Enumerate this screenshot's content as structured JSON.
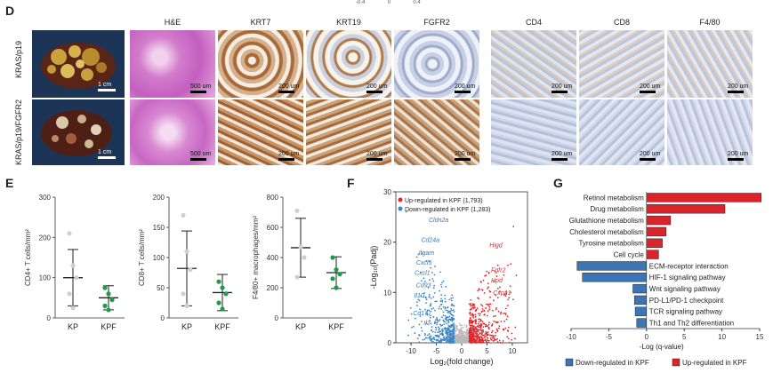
{
  "panel_d": {
    "label": "D",
    "colorbar_ticks": [
      "-0.4",
      "0",
      "0.4"
    ],
    "rows": [
      "KRAS/p19",
      "KRAS/p19/FGFR2"
    ],
    "columns": [
      "H&E",
      "KRT7",
      "KRT19",
      "FGFR2",
      "CD4",
      "CD8",
      "F4/80"
    ],
    "photo_scale": "1 cm",
    "he_scale": "500 um",
    "ihc_scale": "200 um"
  },
  "panel_e": {
    "label": "E",
    "plots": [
      {
        "ylabel": "CD4+ T cells/mm²",
        "yticks": [
          "0",
          "100",
          "200",
          "300"
        ]
      },
      {
        "ylabel": "CD8+ T cells/mm²",
        "yticks": [
          "0",
          "50",
          "100",
          "150",
          "200"
        ]
      },
      {
        "ylabel": "F4/80+ macrophages/mm²",
        "yticks": [
          "0",
          "200",
          "400",
          "600",
          "800"
        ]
      }
    ],
    "groups": [
      "KP",
      "KPF"
    ]
  },
  "panel_f": {
    "label": "F",
    "legend_up": "Up-regulated in KPF (1,793)",
    "legend_down": "Down-regulated in KPF (1,283)",
    "ylabel": "-Log₁₀(Padj)",
    "xlabel": "Log₂(fold change)",
    "xticks": [
      "-10",
      "-5",
      "0",
      "5",
      "10"
    ],
    "yticks": [
      "0",
      "10",
      "20",
      "30"
    ],
    "genes_down": [
      "Cldn2a",
      "Cd24a",
      "Itgam",
      "Cxcl5",
      "Cxcl1",
      "Cd93",
      "Il10",
      "Cd177",
      "Il2"
    ],
    "genes_up": [
      "Higd",
      "Fgfr2",
      "Hpd",
      "Cxpa1"
    ]
  },
  "panel_g": {
    "label": "G",
    "xlabel": "-Log (q-value)",
    "xticks": [
      "-10",
      "-5",
      "0",
      "5",
      "10",
      "15"
    ],
    "legend_down": "Down-regulated in KPF",
    "legend_up": "Up-regulated in KPF",
    "colors": {
      "up": "#d9242b",
      "down": "#3c74b4"
    }
  },
  "chart_data": [
    {
      "type": "scatter",
      "title": "",
      "ylabel": "CD4+ T cells/mm²",
      "categories": [
        "KP",
        "KPF"
      ],
      "ylim": [
        0,
        300
      ],
      "series": [
        {
          "name": "KP",
          "values": [
            210,
            130,
            100,
            60,
            25
          ],
          "mean": 100,
          "sd": 70
        },
        {
          "name": "KPF",
          "values": [
            75,
            60,
            45,
            30,
            20
          ],
          "mean": 50,
          "sd": 30
        }
      ]
    },
    {
      "type": "scatter",
      "title": "",
      "ylabel": "CD8+ T cells/mm²",
      "categories": [
        "KP",
        "KPF"
      ],
      "ylim": [
        0,
        200
      ],
      "series": [
        {
          "name": "KP",
          "values": [
            170,
            110,
            80,
            40,
            20
          ],
          "mean": 82,
          "sd": 62
        },
        {
          "name": "KPF",
          "values": [
            60,
            50,
            40,
            25,
            15
          ],
          "mean": 42,
          "sd": 30
        }
      ]
    },
    {
      "type": "scatter",
      "title": "",
      "ylabel": "F4/80+ macrophages/mm²",
      "categories": [
        "KP",
        "KPF"
      ],
      "ylim": [
        0,
        800
      ],
      "series": [
        {
          "name": "KP",
          "values": [
            710,
            470,
            400,
            270
          ],
          "mean": 465,
          "sd": 195
        },
        {
          "name": "KPF",
          "values": [
            400,
            320,
            290,
            260,
            200
          ],
          "mean": 300,
          "sd": 105
        }
      ]
    },
    {
      "type": "scatter",
      "title": "",
      "xlabel": "Log₂(fold change)",
      "ylabel": "-Log₁₀(Padj)",
      "xlim": [
        -13,
        13
      ],
      "ylim": [
        0,
        30
      ],
      "series": [
        {
          "name": "Up-regulated in KPF (1,793)"
        },
        {
          "name": "Down-regulated in KPF (1,283)"
        }
      ]
    },
    {
      "type": "bar",
      "orientation": "horizontal",
      "xlabel": "-Log (q-value)",
      "xlim": [
        -10,
        15
      ],
      "categories": [
        "Retinol metabolism",
        "Drug metabolism",
        "Glutathione metabolism",
        "Cholesterol metabolism",
        "Tyrosine metabolism",
        "Cell cycle",
        "ECM-receptor interaction",
        "HIF-1 signaling pathway",
        "Wnt signaling pathway",
        "PD-L1/PD-1 checkpoint",
        "TCR signaling pathway",
        "Th1 and Th2 differentiation"
      ],
      "values": [
        15.2,
        10.4,
        3.2,
        2.6,
        2.1,
        1.6,
        -9.2,
        -8.5,
        -1.8,
        -1.6,
        -1.5,
        -1.3
      ],
      "series": [
        {
          "name": "Up-regulated in KPF",
          "categories": [
            "Retinol metabolism",
            "Drug metabolism",
            "Glutathione metabolism",
            "Cholesterol metabolism",
            "Tyrosine metabolism",
            "Cell cycle"
          ]
        },
        {
          "name": "Down-regulated in KPF",
          "categories": [
            "ECM-receptor interaction",
            "HIF-1 signaling pathway",
            "Wnt signaling pathway",
            "PD-L1/PD-1 checkpoint",
            "TCR signaling pathway",
            "Th1 and Th2 differentiation"
          ]
        }
      ]
    }
  ]
}
